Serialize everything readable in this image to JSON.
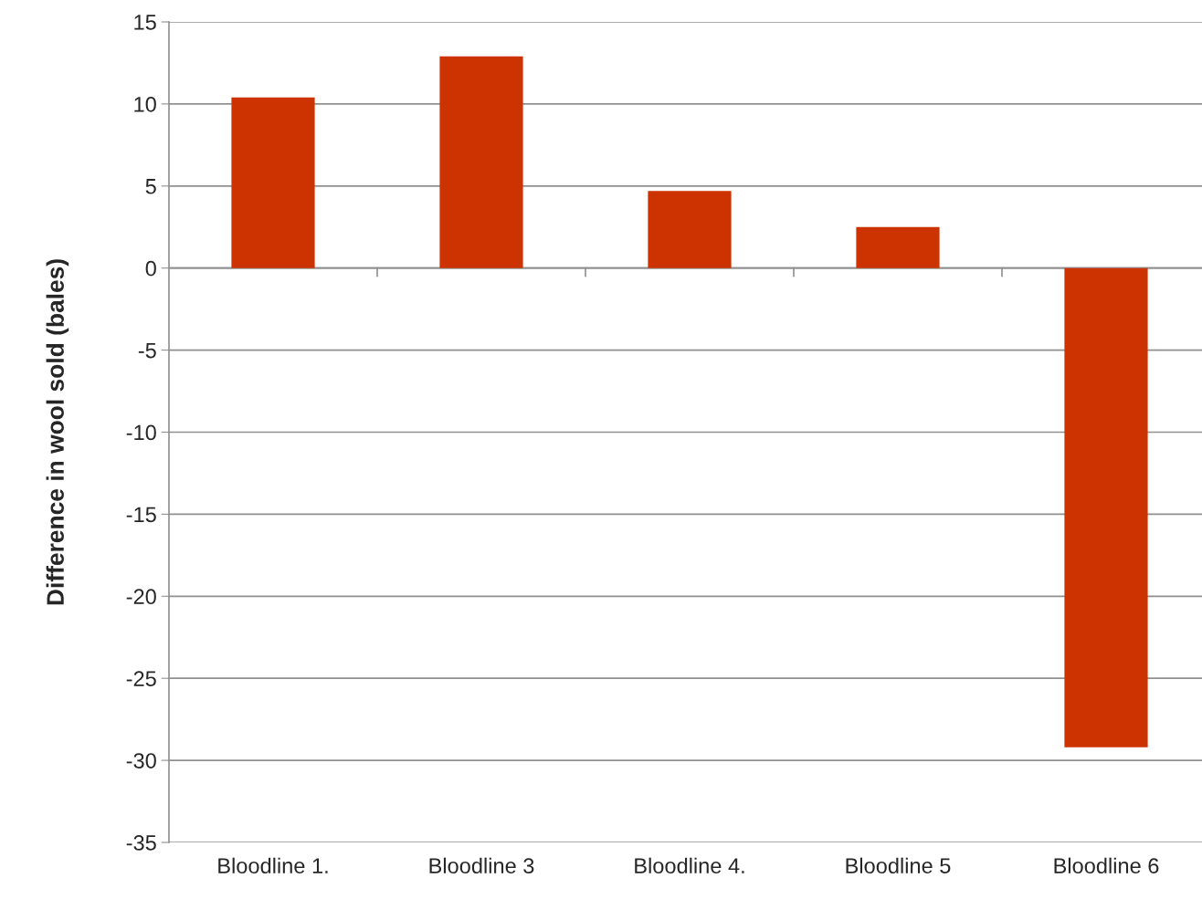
{
  "chart_data": {
    "type": "bar",
    "ylabel": "Difference in wool sold (bales)",
    "categories": [
      "Bloodline 1.",
      "Bloodline 3",
      "Bloodline 4.",
      "Bloodline 5",
      "Bloodline 6"
    ],
    "values": [
      10.4,
      12.9,
      4.7,
      2.5,
      -29.2
    ],
    "color": "#cc3300",
    "ylim": [
      -35,
      15
    ],
    "yticks": [
      -35,
      -30,
      -25,
      -20,
      -15,
      -10,
      -5,
      0,
      5,
      10,
      15
    ],
    "grid": "y"
  }
}
